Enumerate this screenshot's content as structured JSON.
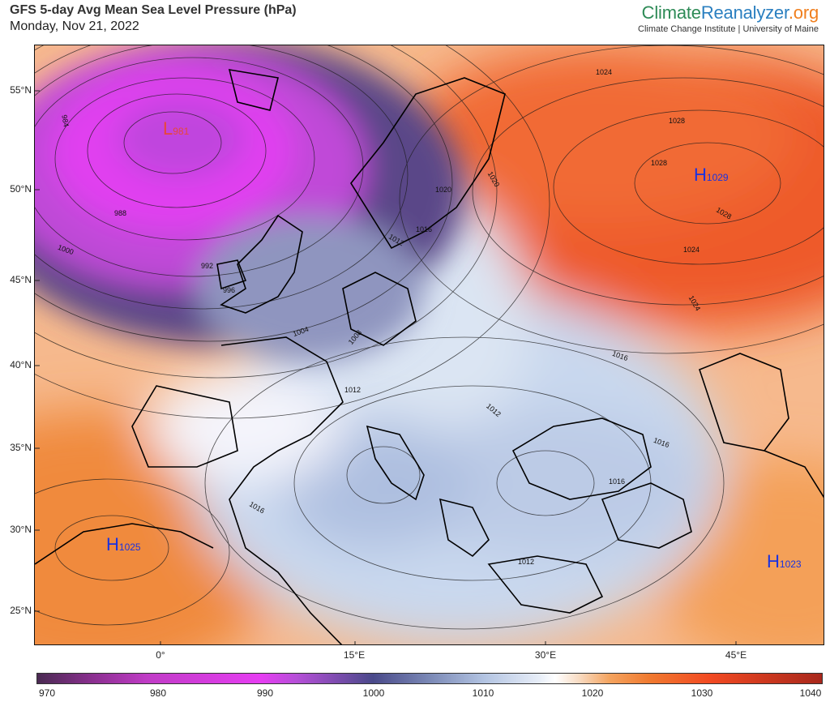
{
  "header": {
    "title": "GFS 5-day Avg Mean Sea Level Pressure (hPa)",
    "date": "Monday, Nov 21, 2022"
  },
  "brand": {
    "part1": "Climate",
    "part2": "Reanalyzer",
    "part3": ".org",
    "subtitle": "Climate Change Institute | University of Maine"
  },
  "axes": {
    "lat_labels": [
      "55°N",
      "50°N",
      "45°N",
      "40°N",
      "35°N",
      "30°N",
      "25°N"
    ],
    "lon_labels": [
      "0°",
      "15°E",
      "30°E",
      "45°E"
    ]
  },
  "colorbar": {
    "labels": [
      "970",
      "980",
      "990",
      "1000",
      "1010",
      "1020",
      "1030",
      "1040"
    ]
  },
  "pressure_centers": [
    {
      "type": "L",
      "value": "981",
      "color": "#e8473a"
    },
    {
      "type": "H",
      "value": "1029",
      "color": "#1a32e0"
    },
    {
      "type": "H",
      "value": "1025",
      "color": "#1a32e0"
    },
    {
      "type": "H",
      "value": "1023",
      "color": "#1a32e0"
    }
  ],
  "contour_labels": [
    "984",
    "988",
    "992",
    "996",
    "1000",
    "1004",
    "1008",
    "1012",
    "1012",
    "1012",
    "1012",
    "1016",
    "1016",
    "1016",
    "1016",
    "1016",
    "1020",
    "1020",
    "1024",
    "1024",
    "1024",
    "1028",
    "1028",
    "1028"
  ]
}
